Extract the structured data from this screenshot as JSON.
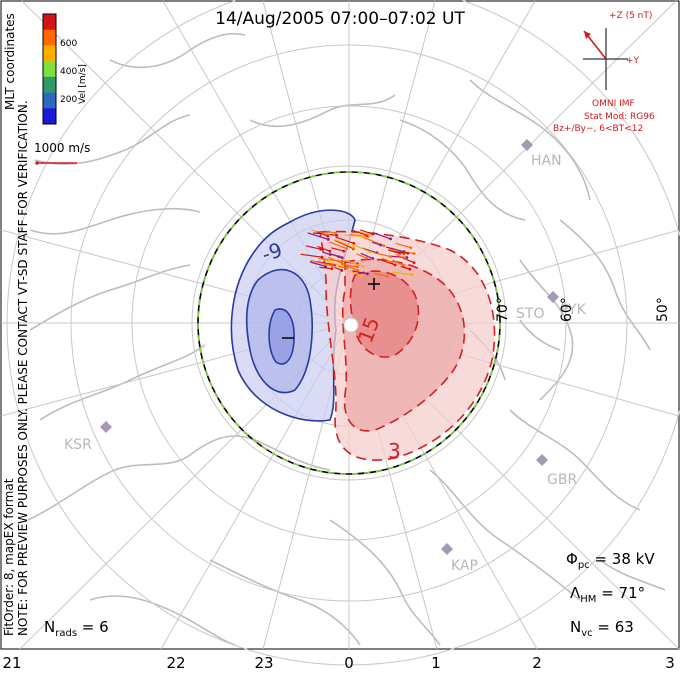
{
  "title": "14/Aug/2005 07:00–07:02 UT",
  "colorbar": {
    "unit_label": "Vel [m/s]",
    "ticks": [
      "600",
      "400",
      "200"
    ],
    "colors": [
      "#d41414",
      "#ff6a00",
      "#ffae00",
      "#80e040",
      "#2e9b6a",
      "#2b6ac0",
      "#1a1ad8"
    ]
  },
  "vertical_text": {
    "coords": "MLT coordinates",
    "note": "NOTE: FOR PREVIEW PURPOSES ONLY. PLEASE CONTACT VT-SD STAFF FOR VERIFICATION.",
    "fit": "FitOrder: 8, mapEX format"
  },
  "reference_vector": {
    "label": "1000 m/s"
  },
  "imf": {
    "bz_label": "+Z (5 nT)",
    "y_label": "+Y",
    "source": "OMNI IMF",
    "model": "Stat Mod: RG96",
    "bin": "Bz+/By−, 6<BT<12"
  },
  "stations": [
    "HAN",
    "PYK",
    "STO",
    "KSR",
    "GBR",
    "KAP"
  ],
  "latitude_labels": [
    "70°",
    "60°",
    "50°"
  ],
  "contour_labels": [
    "-9",
    "15",
    "3"
  ],
  "bottom_axis": [
    "21",
    "22",
    "23",
    "0",
    "1",
    "2",
    "3"
  ],
  "stats": {
    "nrads_sym": "N",
    "nrads_sub": "rads",
    "nrads_val": " = 6",
    "phi_sym": "Φ",
    "phi_sub": "pc",
    "phi_val": " = 38 kV",
    "lambda_sym": "Λ",
    "lambda_sub": "HM",
    "lambda_val": " = 71°",
    "nvc_sym": "N",
    "nvc_sub": "vc",
    "nvc_val": " = 63"
  }
}
